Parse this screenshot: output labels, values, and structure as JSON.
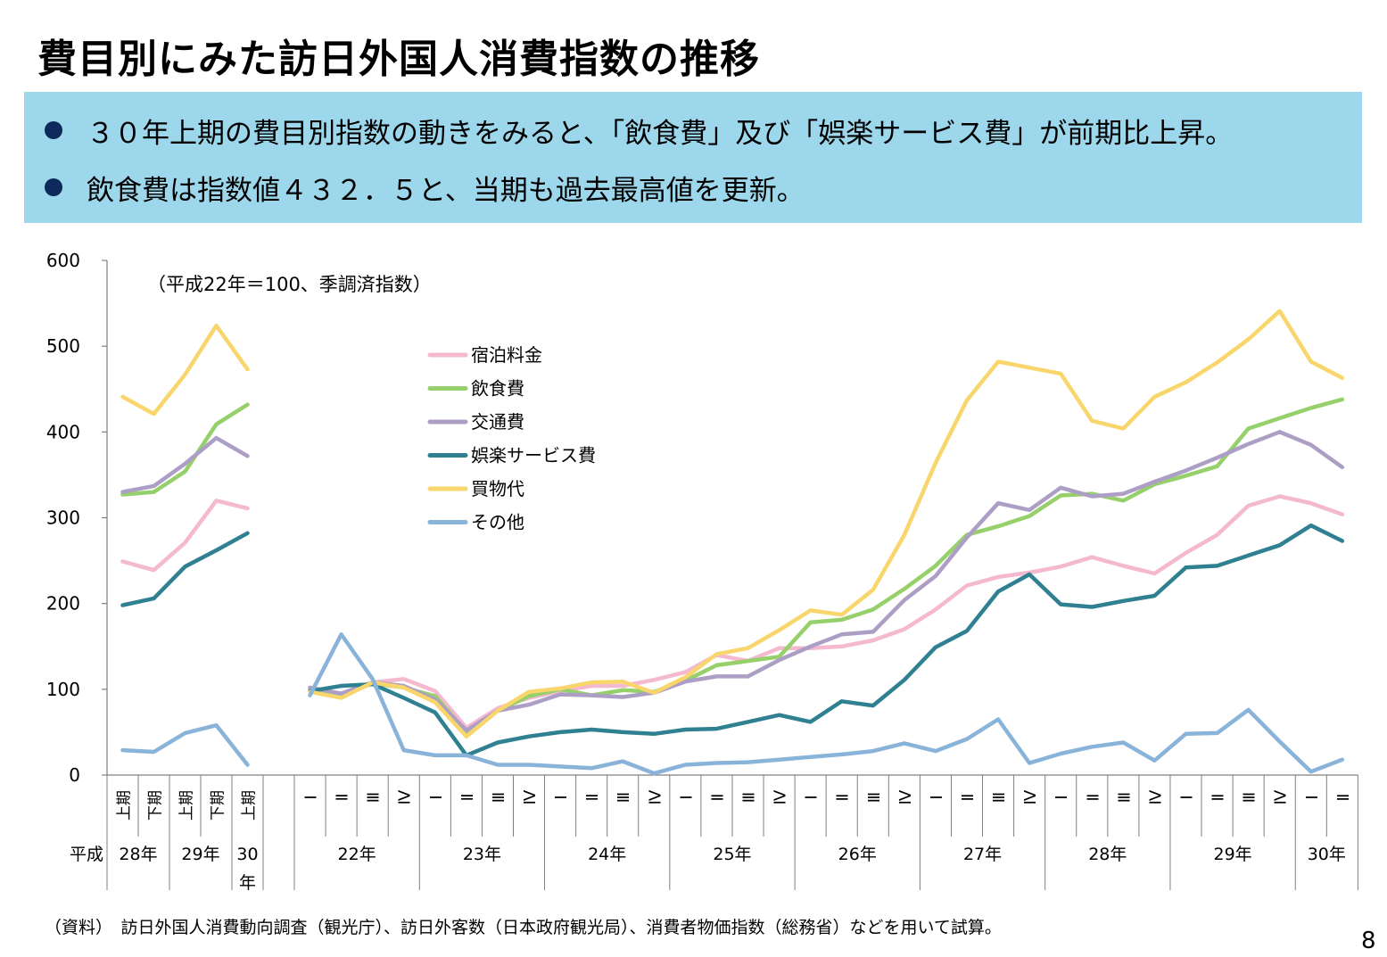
{
  "title": "費目別にみた訪日外国人消費指数の推移",
  "summary": {
    "bullets": [
      "３０年上期の費目別指数の動きをみると、「飲食費」及び「娯楽サービス費」が前期比上昇。",
      "飲食費は指数値４３２．５と、当期も過去最高値を更新。"
    ]
  },
  "source_note": "（資料）　訪日外国人消費動向調査（観光庁）、訪日外客数（日本政府観光局）、消費者物価指数（総務省）などを用いて試算。",
  "page_number": "8",
  "chart_data": {
    "type": "line",
    "note": "（平成22年＝100、季調済指数）",
    "ylim": [
      0,
      600
    ],
    "yticks": [
      0,
      100,
      200,
      300,
      400,
      500,
      600
    ],
    "era_label": "平成",
    "grid": false,
    "legend_position": "center",
    "half_year": {
      "periods": [
        "上期",
        "下期",
        "上期",
        "下期",
        "上期"
      ],
      "years": [
        {
          "label": "28年",
          "count": 2
        },
        {
          "label": "29年",
          "count": 2
        },
        {
          "label": "30年",
          "count": 1
        }
      ]
    },
    "quarterly": {
      "periods": [
        "Ⅰ",
        "Ⅱ",
        "Ⅲ",
        "Ⅳ",
        "Ⅰ",
        "Ⅱ",
        "Ⅲ",
        "Ⅳ",
        "Ⅰ",
        "Ⅱ",
        "Ⅲ",
        "Ⅳ",
        "Ⅰ",
        "Ⅱ",
        "Ⅲ",
        "Ⅳ",
        "Ⅰ",
        "Ⅱ",
        "Ⅲ",
        "Ⅳ",
        "Ⅰ",
        "Ⅱ",
        "Ⅲ",
        "Ⅳ",
        "Ⅰ",
        "Ⅱ",
        "Ⅲ",
        "Ⅳ",
        "Ⅰ",
        "Ⅱ",
        "Ⅲ",
        "Ⅳ",
        "Ⅰ",
        "Ⅱ"
      ],
      "years": [
        {
          "label": "22年",
          "count": 4
        },
        {
          "label": "23年",
          "count": 4
        },
        {
          "label": "24年",
          "count": 4
        },
        {
          "label": "25年",
          "count": 4
        },
        {
          "label": "26年",
          "count": 4
        },
        {
          "label": "27年",
          "count": 4
        },
        {
          "label": "28年",
          "count": 4
        },
        {
          "label": "29年",
          "count": 4
        },
        {
          "label": "30年",
          "count": 2
        }
      ]
    },
    "series": [
      {
        "name": "宿泊料金",
        "color": "#f4b8cf",
        "half_year": [
          249,
          239,
          271,
          320,
          311
        ],
        "quarterly": [
          98,
          95,
          108,
          112,
          98,
          55,
          78,
          90,
          98,
          104,
          104,
          111,
          120,
          140,
          133,
          148,
          148,
          150,
          157,
          170,
          193,
          221,
          231,
          236,
          243,
          254,
          244,
          235,
          259,
          280,
          314,
          325,
          317,
          304
        ]
      },
      {
        "name": "飲食費",
        "color": "#96d06a",
        "half_year": [
          327,
          330,
          354,
          409,
          432
        ],
        "quarterly": [
          100,
          93,
          107,
          102,
          92,
          50,
          75,
          92,
          100,
          93,
          99,
          97,
          110,
          128,
          133,
          138,
          178,
          181,
          193,
          217,
          244,
          280,
          290,
          302,
          326,
          328,
          320,
          339,
          349,
          360,
          404,
          416,
          428,
          438
        ]
      },
      {
        "name": "交通費",
        "color": "#ad9ec6",
        "half_year": [
          330,
          337,
          363,
          393,
          372
        ],
        "quarterly": [
          102,
          95,
          108,
          104,
          88,
          52,
          75,
          82,
          94,
          93,
          91,
          96,
          109,
          115,
          115,
          134,
          150,
          164,
          167,
          204,
          232,
          277,
          317,
          309,
          335,
          325,
          328,
          342,
          355,
          370,
          386,
          400,
          385,
          359
        ]
      },
      {
        "name": "娯楽サービス費",
        "color": "#2f8090",
        "half_year": [
          198,
          206,
          243,
          262,
          282
        ],
        "quarterly": [
          98,
          104,
          106,
          90,
          73,
          23,
          38,
          45,
          50,
          53,
          50,
          48,
          53,
          54,
          62,
          70,
          62,
          86,
          81,
          111,
          149,
          168,
          214,
          234,
          199,
          196,
          203,
          209,
          242,
          244,
          256,
          268,
          291,
          273
        ]
      },
      {
        "name": "買物代",
        "color": "#f8d66c",
        "half_year": [
          441,
          421,
          467,
          524,
          473
        ],
        "quarterly": [
          97,
          90,
          108,
          102,
          85,
          45,
          75,
          97,
          101,
          108,
          109,
          96,
          114,
          141,
          148,
          169,
          192,
          187,
          216,
          280,
          364,
          437,
          482,
          475,
          468,
          413,
          404,
          441,
          458,
          481,
          508,
          541,
          482,
          463
        ]
      },
      {
        "name": "その他",
        "color": "#8ab3da",
        "half_year": [
          29,
          27,
          49,
          58,
          12
        ],
        "quarterly": [
          93,
          164,
          112,
          29,
          23,
          23,
          12,
          12,
          10,
          8,
          16,
          2,
          12,
          14,
          15,
          18,
          21,
          24,
          28,
          37,
          28,
          42,
          65,
          14,
          25,
          33,
          38,
          17,
          48,
          49,
          76,
          39,
          4,
          18
        ]
      }
    ]
  }
}
